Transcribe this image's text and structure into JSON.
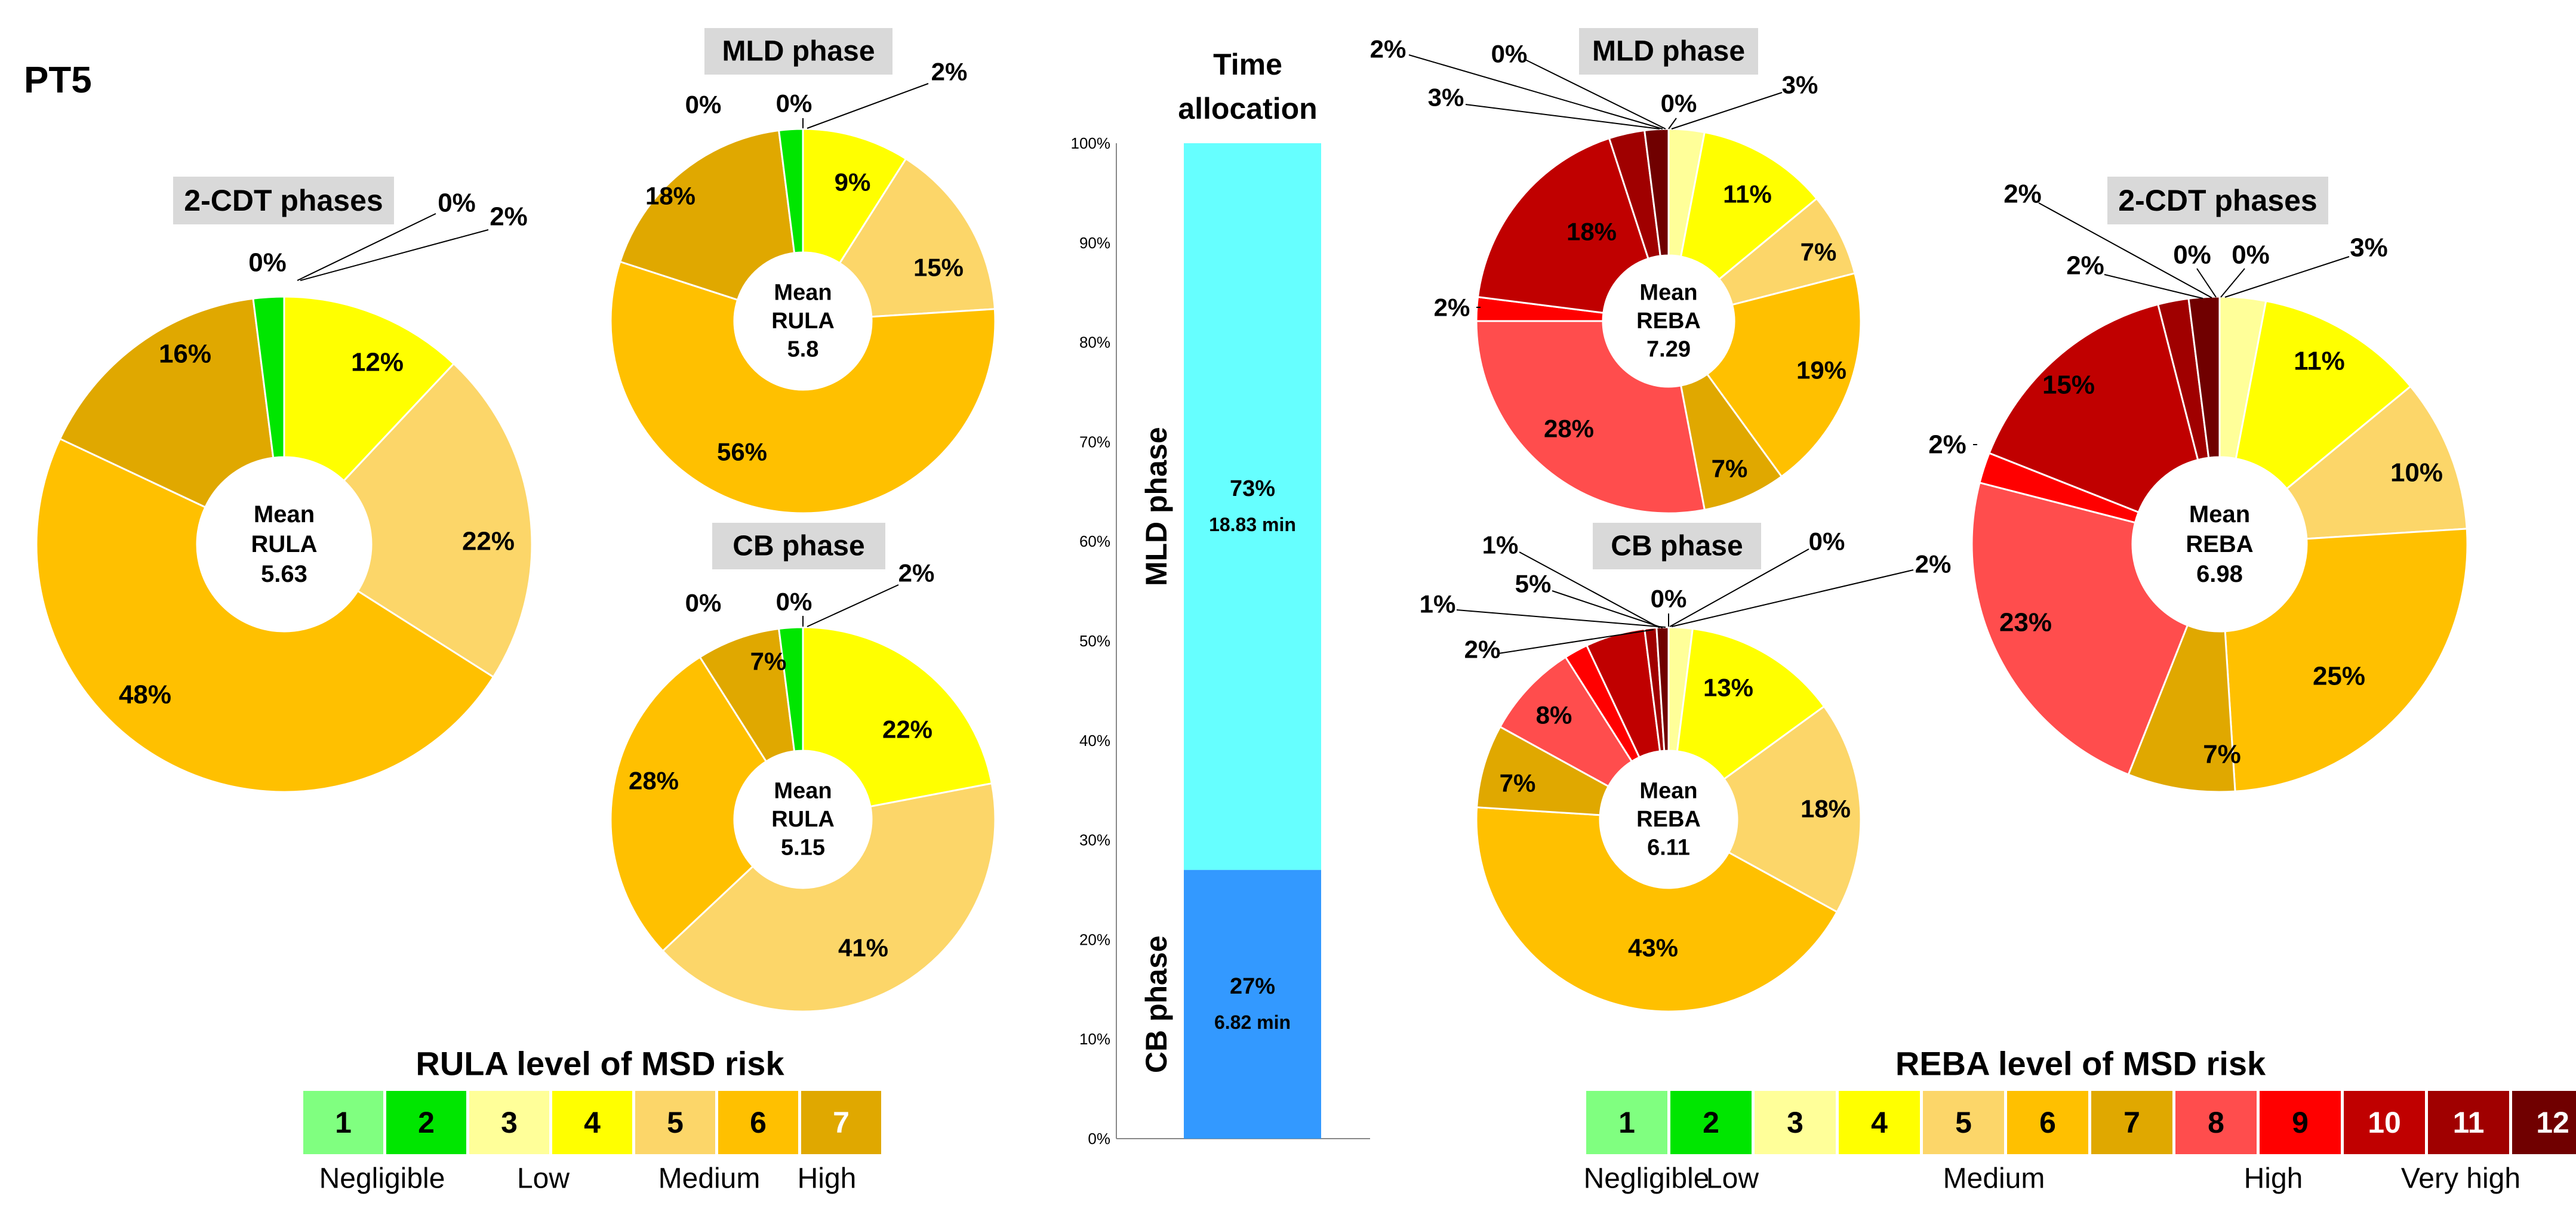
{
  "page_label": "PT5",
  "colors": {
    "l1": "#80ff80",
    "l2": "#00e600",
    "l3": "#ffff99",
    "l4": "#ffff00",
    "l5": "#fcd669",
    "l6": "#ffc000",
    "l7": "#e0a800",
    "l8": "#ff4d4d",
    "l9": "#ff0000",
    "l10": "#c00000",
    "l11": "#a00000",
    "l12": "#700000",
    "mld_bar": "#66ffff",
    "cb_bar": "#3399ff"
  },
  "chart_data": [
    {
      "id": "rula-2cdt",
      "type": "pie",
      "title": "2-CDT phases",
      "center_label": [
        "Mean",
        "RULA",
        "5.63"
      ],
      "slices": [
        {
          "level": 3,
          "value": 0,
          "label": "0%"
        },
        {
          "level": 4,
          "value": 12,
          "label": "12%"
        },
        {
          "level": 5,
          "value": 22,
          "label": "22%"
        },
        {
          "level": 6,
          "value": 48,
          "label": "48%"
        },
        {
          "level": 7,
          "value": 16,
          "label": "16%"
        },
        {
          "level": 2,
          "value": 2,
          "label": "2%"
        }
      ],
      "extra_labels": [
        "0%"
      ]
    },
    {
      "id": "rula-mld",
      "type": "pie",
      "title": "MLD phase",
      "center_label": [
        "Mean",
        "RULA",
        "5.8"
      ],
      "slices": [
        {
          "level": 3,
          "value": 0,
          "label": "0%"
        },
        {
          "level": 4,
          "value": 9,
          "label": "9%"
        },
        {
          "level": 5,
          "value": 15,
          "label": "15%"
        },
        {
          "level": 6,
          "value": 56,
          "label": "56%"
        },
        {
          "level": 7,
          "value": 18,
          "label": "18%"
        },
        {
          "level": 2,
          "value": 2,
          "label": "2%"
        }
      ],
      "extra_labels": [
        "0%"
      ]
    },
    {
      "id": "rula-cb",
      "type": "pie",
      "title": "CB phase",
      "center_label": [
        "Mean",
        "RULA",
        "5.15"
      ],
      "slices": [
        {
          "level": 3,
          "value": 0,
          "label": "0%"
        },
        {
          "level": 4,
          "value": 22,
          "label": "22%"
        },
        {
          "level": 5,
          "value": 41,
          "label": "41%"
        },
        {
          "level": 6,
          "value": 28,
          "label": "28%"
        },
        {
          "level": 7,
          "value": 7,
          "label": "7%"
        },
        {
          "level": 2,
          "value": 2,
          "label": "2%"
        }
      ],
      "extra_labels": [
        "0%"
      ]
    },
    {
      "id": "time-allocation",
      "type": "bar",
      "stacked": true,
      "title": "Time allocation",
      "y_ticks": [
        "0%",
        "10%",
        "20%",
        "30%",
        "40%",
        "50%",
        "60%",
        "70%",
        "80%",
        "90%",
        "100%"
      ],
      "ylim": [
        0,
        100
      ],
      "series": [
        {
          "name": "CB phase",
          "value": 27,
          "label": "27%",
          "minutes": "6.82 min"
        },
        {
          "name": "MLD phase",
          "value": 73,
          "label": "73%",
          "minutes": "18.83 min"
        }
      ]
    },
    {
      "id": "reba-mld",
      "type": "pie",
      "title": "MLD phase",
      "center_label": [
        "Mean",
        "REBA",
        "7.29"
      ],
      "slices": [
        {
          "level": 3,
          "value": 3,
          "label": "3%"
        },
        {
          "level": 4,
          "value": 11,
          "label": "11%"
        },
        {
          "level": 5,
          "value": 7,
          "label": "7%"
        },
        {
          "level": 6,
          "value": 19,
          "label": "19%"
        },
        {
          "level": 7,
          "value": 7,
          "label": "7%"
        },
        {
          "level": 8,
          "value": 28,
          "label": "28%"
        },
        {
          "level": 9,
          "value": 2,
          "label": "2%"
        },
        {
          "level": 10,
          "value": 18,
          "label": "18%"
        },
        {
          "level": 11,
          "value": 3,
          "label": "3%"
        },
        {
          "level": 12,
          "value": 2,
          "label": "2%"
        },
        {
          "level": 1,
          "value": 0,
          "label": "0%"
        },
        {
          "level": 2,
          "value": 0,
          "label": "0%"
        }
      ]
    },
    {
      "id": "reba-cb",
      "type": "pie",
      "title": "CB phase",
      "center_label": [
        "Mean",
        "REBA",
        "6.11"
      ],
      "slices": [
        {
          "level": 3,
          "value": 2,
          "label": "2%"
        },
        {
          "level": 4,
          "value": 13,
          "label": "13%"
        },
        {
          "level": 5,
          "value": 18,
          "label": "18%"
        },
        {
          "level": 6,
          "value": 43,
          "label": "43%"
        },
        {
          "level": 7,
          "value": 7,
          "label": "7%"
        },
        {
          "level": 8,
          "value": 8,
          "label": "8%"
        },
        {
          "level": 9,
          "value": 2,
          "label": "2%"
        },
        {
          "level": 10,
          "value": 5,
          "label": "5%"
        },
        {
          "level": 11,
          "value": 1,
          "label": "1%"
        },
        {
          "level": 12,
          "value": 1,
          "label": "1%"
        },
        {
          "level": 1,
          "value": 0,
          "label": "0%"
        },
        {
          "level": 2,
          "value": 0,
          "label": "0%"
        }
      ]
    },
    {
      "id": "reba-2cdt",
      "type": "pie",
      "title": "2-CDT phases",
      "center_label": [
        "Mean",
        "REBA",
        "6.98"
      ],
      "slices": [
        {
          "level": 3,
          "value": 3,
          "label": "3%"
        },
        {
          "level": 4,
          "value": 11,
          "label": "11%"
        },
        {
          "level": 5,
          "value": 10,
          "label": "10%"
        },
        {
          "level": 6,
          "value": 25,
          "label": "25%"
        },
        {
          "level": 7,
          "value": 7,
          "label": "7%"
        },
        {
          "level": 8,
          "value": 23,
          "label": "23%"
        },
        {
          "level": 9,
          "value": 2,
          "label": "2%"
        },
        {
          "level": 10,
          "value": 15,
          "label": "15%"
        },
        {
          "level": 11,
          "value": 2,
          "label": "2%"
        },
        {
          "level": 12,
          "value": 2,
          "label": "2%"
        },
        {
          "level": 1,
          "value": 0,
          "label": "0%"
        },
        {
          "level": 2,
          "value": 0,
          "label": "0%"
        }
      ]
    }
  ],
  "rula_legend": {
    "title": "RULA level of MSD risk",
    "levels": [
      "1",
      "2",
      "3",
      "4",
      "5",
      "6",
      "7"
    ],
    "categories": [
      "Negligible",
      "Low",
      "Medium",
      "High"
    ]
  },
  "reba_legend": {
    "title": "REBA level of MSD risk",
    "levels": [
      "1",
      "2",
      "3",
      "4",
      "5",
      "6",
      "7",
      "8",
      "9",
      "10",
      "11",
      "12"
    ],
    "categories": [
      "Negligible",
      "Low",
      "Medium",
      "High",
      "Very high"
    ]
  }
}
